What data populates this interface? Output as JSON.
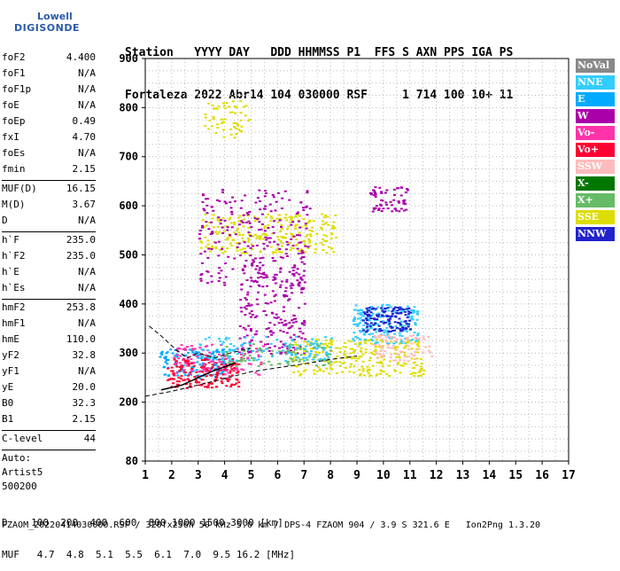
{
  "logo": {
    "line1": "Lowell",
    "line2": "DIGISONDE"
  },
  "header": {
    "line1": "Station   YYYY DAY   DDD HHMMSS P1  FFS S AXN PPS IGA PS",
    "line2": "Fortaleza 2022 Abr14 104 030000 RSF     1 714 100 10+ 11"
  },
  "params": [
    {
      "k": "foF2",
      "v": "4.400"
    },
    {
      "k": "foF1",
      "v": "N/A"
    },
    {
      "k": "foF1p",
      "v": "N/A"
    },
    {
      "k": "foE",
      "v": "N/A"
    },
    {
      "k": "foEp",
      "v": "0.49"
    },
    {
      "k": "fxI",
      "v": "4.70"
    },
    {
      "k": "foEs",
      "v": "N/A"
    },
    {
      "k": "fmin",
      "v": "2.15"
    },
    {
      "sep": true
    },
    {
      "k": "MUF(D)",
      "v": "16.15"
    },
    {
      "k": "M(D)",
      "v": "3.67"
    },
    {
      "k": "D",
      "v": "N/A"
    },
    {
      "sep": true
    },
    {
      "k": "h`F",
      "v": "235.0"
    },
    {
      "k": "h`F2",
      "v": "235.0"
    },
    {
      "k": "h`E",
      "v": "N/A"
    },
    {
      "k": "h`Es",
      "v": "N/A"
    },
    {
      "sep": true
    },
    {
      "k": "hmF2",
      "v": "253.8"
    },
    {
      "k": "hmF1",
      "v": "N/A"
    },
    {
      "k": "hmE",
      "v": "110.0"
    },
    {
      "k": "yF2",
      "v": "32.8"
    },
    {
      "k": "yF1",
      "v": "N/A"
    },
    {
      "k": "yE",
      "v": "20.0"
    },
    {
      "k": "B0",
      "v": "32.3"
    },
    {
      "k": "B1",
      "v": "2.15"
    },
    {
      "sep": true
    },
    {
      "k": "C-level",
      "v": "44"
    },
    {
      "sep": true
    },
    {
      "text": "Auto:"
    },
    {
      "text": "Artist5"
    },
    {
      "text": "500200"
    }
  ],
  "legend": [
    {
      "label": "NoVal",
      "color": "#888888"
    },
    {
      "label": "NNE",
      "color": "#33ccff"
    },
    {
      "label": "E",
      "color": "#00aaff"
    },
    {
      "label": "W",
      "color": "#aa00aa"
    },
    {
      "label": "Vo-",
      "color": "#ff33aa"
    },
    {
      "label": "Vo+",
      "color": "#ff0033"
    },
    {
      "label": "SSW",
      "color": "#ffbbbb"
    },
    {
      "label": "X-",
      "color": "#007700"
    },
    {
      "label": "X+",
      "color": "#66bb66"
    },
    {
      "label": "SSE",
      "color": "#dddd00"
    },
    {
      "label": "NNW",
      "color": "#2222cc"
    }
  ],
  "bottom": {
    "d_row": "D    100  200  400  600  800 1000 1500 3000 [km]",
    "muf_row": "MUF   4.7  4.8  5.1  5.5  6.1  7.0  9.5 16.2 [MHz]"
  },
  "footer": "FZAOM_20220414030000.RSF / 320fx256h 50 kHz 5.0 km / DPS-4 FZAOM 904 / 3.9 S 321.6 E   Ion2Png 1.3.20",
  "chart_data": {
    "type": "scatter",
    "xlabel": "",
    "ylabel": "",
    "xlim": [
      1,
      17
    ],
    "ylim": [
      80,
      900
    ],
    "x_ticks": [
      1,
      2,
      3,
      4,
      5,
      6,
      7,
      8,
      9,
      10,
      11,
      12,
      13,
      14,
      15,
      16,
      17
    ],
    "y_ticks": [
      80,
      200,
      300,
      400,
      500,
      600,
      700,
      800,
      900
    ],
    "grid": true,
    "clusters": [
      {
        "name": "SSE",
        "color": "#dddd00",
        "xr": [
          3.2,
          4.9
        ],
        "yr": [
          740,
          815
        ],
        "n": 60
      },
      {
        "name": "SSE",
        "color": "#dddd00",
        "xr": [
          3.0,
          8.2
        ],
        "yr": [
          505,
          585
        ],
        "n": 260
      },
      {
        "name": "W",
        "color": "#aa00aa",
        "xr": [
          3.0,
          7.2
        ],
        "yr": [
          440,
          640
        ],
        "n": 240
      },
      {
        "name": "W",
        "color": "#aa00aa",
        "xr": [
          4.5,
          7.0
        ],
        "yr": [
          300,
          480
        ],
        "n": 200
      },
      {
        "name": "W",
        "color": "#aa00aa",
        "xr": [
          9.4,
          10.9
        ],
        "yr": [
          590,
          640
        ],
        "n": 60
      },
      {
        "name": "NNE",
        "color": "#33ccff",
        "xr": [
          8.8,
          11.3
        ],
        "yr": [
          320,
          400
        ],
        "n": 220
      },
      {
        "name": "NNW",
        "color": "#2222cc",
        "xr": [
          9.2,
          11.0
        ],
        "yr": [
          345,
          395
        ],
        "n": 120
      },
      {
        "name": "E",
        "color": "#00aaff",
        "xr": [
          1.5,
          4.0
        ],
        "yr": [
          250,
          310
        ],
        "n": 140
      },
      {
        "name": "SSE",
        "color": "#dddd00",
        "xr": [
          6.5,
          11.5
        ],
        "yr": [
          255,
          330
        ],
        "n": 260
      },
      {
        "name": "SSW",
        "color": "#ffbbbb",
        "xr": [
          9.5,
          11.8
        ],
        "yr": [
          285,
          340
        ],
        "n": 80
      },
      {
        "name": "Vo+",
        "color": "#ff0033",
        "xr": [
          1.8,
          4.5
        ],
        "yr": [
          230,
          290
        ],
        "n": 180
      },
      {
        "name": "Vo-",
        "color": "#ff33aa",
        "xr": [
          2.0,
          5.5
        ],
        "yr": [
          255,
          320
        ],
        "n": 100
      },
      {
        "name": "X+",
        "color": "#66bb66",
        "xr": [
          4.0,
          8.0
        ],
        "yr": [
          275,
          320
        ],
        "n": 90
      },
      {
        "name": "NNE",
        "color": "#33ccff",
        "xr": [
          3.0,
          8.0
        ],
        "yr": [
          285,
          335
        ],
        "n": 120
      }
    ],
    "trace": [
      [
        1.6,
        225
      ],
      [
        2.4,
        235
      ],
      [
        3.0,
        250
      ],
      [
        3.5,
        262
      ],
      [
        4.0,
        272
      ],
      [
        4.4,
        280
      ]
    ],
    "dashed_upper": [
      [
        1.15,
        355
      ],
      [
        1.6,
        335
      ],
      [
        2.2,
        305
      ],
      [
        2.6,
        290
      ],
      [
        3.0,
        300
      ],
      [
        3.6,
        290
      ],
      [
        4.2,
        300
      ],
      [
        5.0,
        310
      ]
    ],
    "dashed_lower": [
      [
        1.0,
        212
      ],
      [
        2.0,
        222
      ],
      [
        3.0,
        235
      ],
      [
        4.0,
        248
      ],
      [
        5.0,
        262
      ],
      [
        6.0,
        270
      ],
      [
        7.0,
        278
      ],
      [
        8.0,
        287
      ],
      [
        9.0,
        294
      ]
    ]
  }
}
